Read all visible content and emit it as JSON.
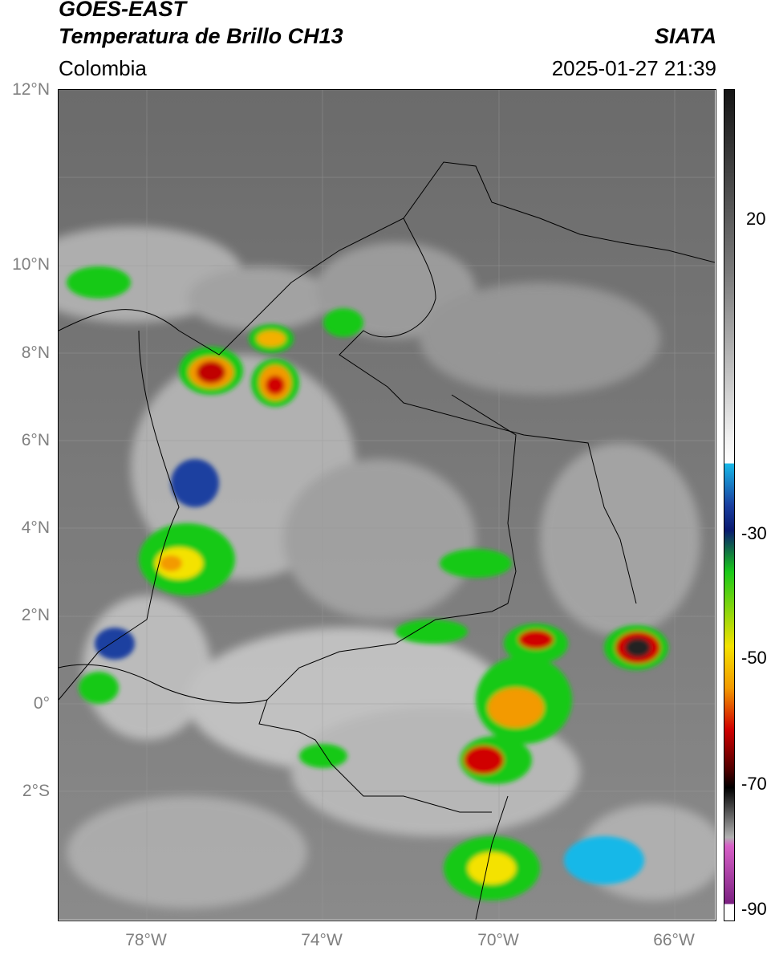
{
  "header": {
    "title_line1": "GOES-EAST",
    "title_line2": "Temperatura de Brillo CH13",
    "agency": "SIATA",
    "region": "Colombia",
    "timestamp": "2025-01-27 21:39"
  },
  "map": {
    "lat_labels": [
      "12°N",
      "10°N",
      "8°N",
      "6°N",
      "4°N",
      "2°N",
      "0°",
      "2°S"
    ],
    "lon_labels": [
      "78°W",
      "74°W",
      "70°W",
      "66°W"
    ]
  },
  "colorbar": {
    "ticks": [
      "20",
      "-30",
      "-50",
      "-70",
      "-90"
    ],
    "colors": {
      "warm_gray_top": "#151515",
      "gray_mid": "#7a7a7a",
      "light": "#f2f2f2",
      "cyan": "#18b8e8",
      "blue": "#1a3fa0",
      "navy": "#0a1a70",
      "green": "#19c919",
      "yellow": "#f4e200",
      "orange": "#f39a00",
      "red": "#d00000",
      "dark_red": "#4a0000",
      "black": "#000000",
      "pink": "#d860c8",
      "purple": "#7a2080"
    }
  }
}
